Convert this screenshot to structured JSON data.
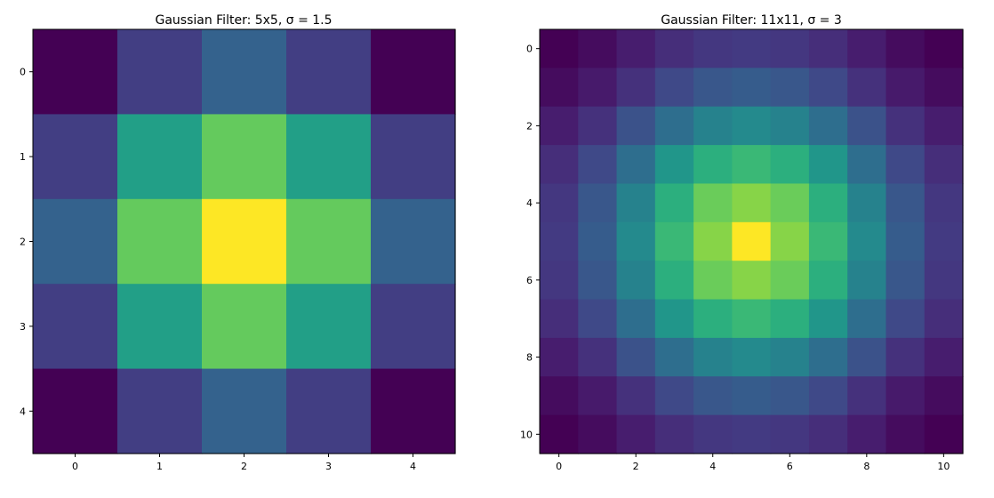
{
  "chart_data": [
    {
      "type": "heatmap",
      "title": "Gaussian Filter: 5x5, σ = 1.5",
      "colormap": "viridis",
      "grid": false,
      "x_ticks": [
        0,
        1,
        2,
        3,
        4
      ],
      "y_ticks": [
        0,
        1,
        2,
        3,
        4
      ],
      "xlim": [
        -0.5,
        4.5
      ],
      "ylim": [
        4.5,
        -0.5
      ],
      "values": [
        [
          0.0,
          0.18,
          0.31,
          0.18,
          0.0
        ],
        [
          0.18,
          0.56,
          0.76,
          0.56,
          0.18
        ],
        [
          0.31,
          0.76,
          1.0,
          0.76,
          0.31
        ],
        [
          0.18,
          0.56,
          0.76,
          0.56,
          0.18
        ],
        [
          0.0,
          0.18,
          0.31,
          0.18,
          0.0
        ]
      ]
    },
    {
      "type": "heatmap",
      "title": "Gaussian Filter: 11x11, σ = 3",
      "colormap": "viridis",
      "grid": false,
      "x_ticks": [
        0,
        2,
        4,
        6,
        8,
        10
      ],
      "y_ticks": [
        0,
        2,
        4,
        6,
        8,
        10
      ],
      "xlim": [
        -0.5,
        10.5
      ],
      "ylim": [
        10.5,
        -0.5
      ],
      "values": [
        [
          0.0,
          0.03,
          0.08,
          0.13,
          0.16,
          0.17,
          0.16,
          0.13,
          0.08,
          0.03,
          0.0
        ],
        [
          0.03,
          0.07,
          0.14,
          0.22,
          0.27,
          0.29,
          0.27,
          0.22,
          0.14,
          0.07,
          0.03
        ],
        [
          0.08,
          0.14,
          0.25,
          0.36,
          0.44,
          0.47,
          0.44,
          0.36,
          0.25,
          0.14,
          0.08
        ],
        [
          0.13,
          0.22,
          0.36,
          0.52,
          0.63,
          0.67,
          0.63,
          0.52,
          0.36,
          0.22,
          0.13
        ],
        [
          0.16,
          0.27,
          0.44,
          0.63,
          0.77,
          0.82,
          0.77,
          0.63,
          0.44,
          0.27,
          0.16
        ],
        [
          0.17,
          0.29,
          0.47,
          0.67,
          0.82,
          1.0,
          0.82,
          0.67,
          0.47,
          0.29,
          0.17
        ],
        [
          0.16,
          0.27,
          0.44,
          0.63,
          0.77,
          0.82,
          0.77,
          0.63,
          0.44,
          0.27,
          0.16
        ],
        [
          0.13,
          0.22,
          0.36,
          0.52,
          0.63,
          0.67,
          0.63,
          0.52,
          0.36,
          0.22,
          0.13
        ],
        [
          0.08,
          0.14,
          0.25,
          0.36,
          0.44,
          0.47,
          0.44,
          0.36,
          0.25,
          0.14,
          0.08
        ],
        [
          0.03,
          0.07,
          0.14,
          0.22,
          0.27,
          0.29,
          0.27,
          0.22,
          0.14,
          0.07,
          0.03
        ],
        [
          0.0,
          0.03,
          0.08,
          0.13,
          0.16,
          0.17,
          0.16,
          0.13,
          0.08,
          0.03,
          0.0
        ]
      ]
    }
  ]
}
